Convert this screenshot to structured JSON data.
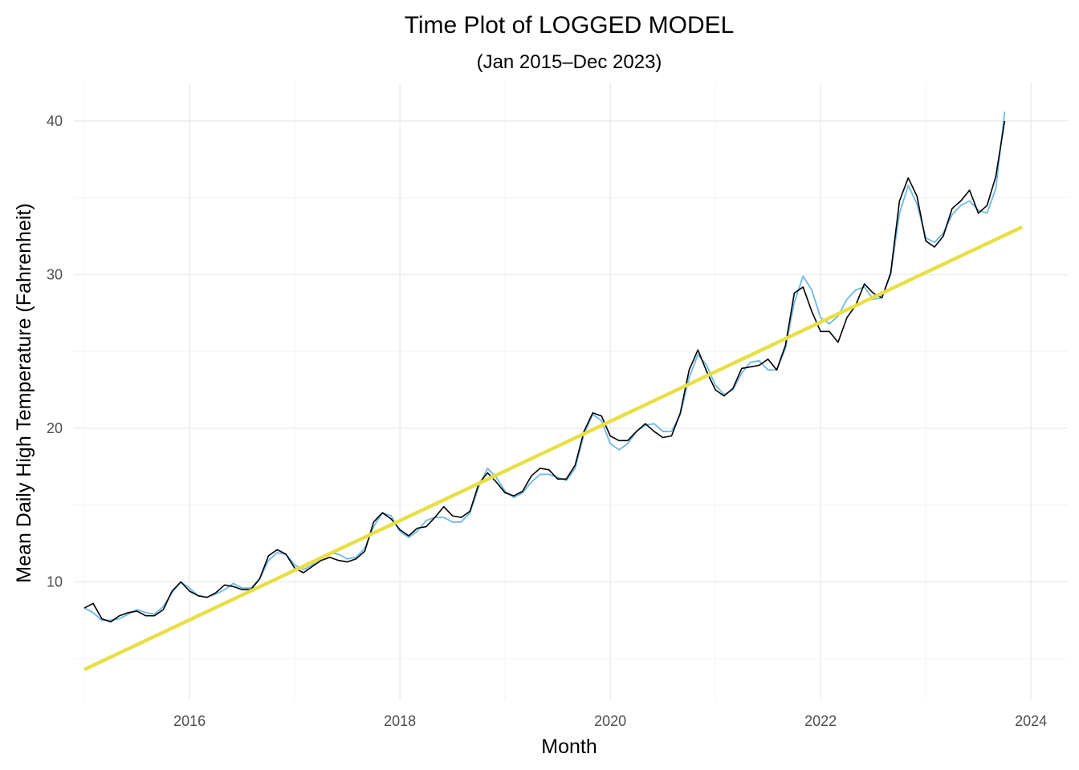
{
  "chart_data": {
    "type": "line",
    "title": "Time Plot of LOGGED MODEL",
    "subtitle": "(Jan 2015–Dec 2023)",
    "xlabel": "Month",
    "ylabel": "Mean Daily High Temperature (Fahrenheit)",
    "xlim": [
      2014.9,
      2024.35
    ],
    "ylim": [
      2.3,
      42.5
    ],
    "x_ticks": [
      2016,
      2018,
      2020,
      2022,
      2024
    ],
    "x_tick_labels": [
      "2016",
      "2018",
      "2020",
      "2022",
      "2024"
    ],
    "y_ticks": [
      10,
      20,
      30,
      40
    ],
    "y_tick_labels": [
      "10",
      "20",
      "30",
      "40"
    ],
    "grid": true,
    "x_start": 2015.0,
    "x_step": 0.08333,
    "series": [
      {
        "color": "#000000",
        "values": [
          8.3,
          8.6,
          7.6,
          7.4,
          7.8,
          8.0,
          8.1,
          7.8,
          7.8,
          8.2,
          9.4,
          10.0,
          9.4,
          9.1,
          9.0,
          9.3,
          9.8,
          9.7,
          9.5,
          9.5,
          10.2,
          11.7,
          12.1,
          11.8,
          10.9,
          10.6,
          11.0,
          11.4,
          11.6,
          11.4,
          11.3,
          11.5,
          12.0,
          13.9,
          14.5,
          14.1,
          13.4,
          13.0,
          13.5,
          13.6,
          14.2,
          14.9,
          14.3,
          14.2,
          14.6,
          16.4,
          17.1,
          16.5,
          15.8,
          15.6,
          15.9,
          16.9,
          17.4,
          17.3,
          16.7,
          16.7,
          17.6,
          19.8,
          21.0,
          20.8,
          19.5,
          19.2,
          19.2,
          19.8,
          20.3,
          19.8,
          19.4,
          19.5,
          21.0,
          23.8,
          25.1,
          23.7,
          22.5,
          22.1,
          22.6,
          23.9,
          24.0,
          24.1,
          24.5,
          23.8,
          25.4,
          28.8,
          29.2,
          27.6,
          26.3,
          26.3,
          25.6,
          27.2,
          28.0,
          29.4,
          28.8,
          28.5,
          30.1,
          34.8,
          36.3,
          35.1,
          32.2,
          31.8,
          32.5,
          34.3,
          34.8,
          35.5,
          34.0,
          34.5,
          36.4,
          40.0
        ]
      },
      {
        "color": "#6db8e6",
        "values": [
          8.3,
          8.0,
          7.5,
          7.5,
          7.6,
          7.9,
          8.2,
          8.0,
          7.9,
          8.4,
          9.3,
          10.0,
          9.6,
          9.1,
          9.0,
          9.2,
          9.5,
          9.9,
          9.6,
          9.6,
          10.2,
          11.4,
          11.9,
          11.8,
          11.1,
          10.8,
          11.1,
          11.6,
          11.9,
          11.8,
          11.5,
          11.6,
          12.2,
          13.6,
          14.5,
          14.3,
          13.3,
          12.9,
          13.3,
          14.0,
          14.2,
          14.2,
          13.9,
          13.9,
          14.5,
          16.2,
          17.4,
          16.8,
          15.9,
          15.5,
          15.8,
          16.5,
          17.0,
          17.0,
          16.8,
          16.6,
          17.4,
          19.6,
          20.9,
          20.5,
          19.0,
          18.6,
          19.0,
          19.8,
          20.2,
          20.3,
          19.8,
          19.8,
          20.9,
          23.3,
          24.8,
          24.1,
          22.8,
          22.2,
          22.5,
          23.6,
          24.3,
          24.4,
          23.8,
          23.8,
          25.2,
          28.2,
          29.9,
          29.0,
          27.2,
          26.8,
          27.3,
          28.4,
          29.0,
          29.2,
          28.4,
          28.5,
          30.0,
          34.0,
          35.8,
          34.6,
          32.4,
          32.1,
          32.7,
          33.9,
          34.5,
          34.8,
          34.2,
          34.0,
          35.6,
          40.6
        ]
      },
      {
        "color": "#e8df46",
        "values": [
          4.3,
          33.1
        ],
        "x": [
          2015.0,
          2023.917
        ]
      }
    ]
  }
}
